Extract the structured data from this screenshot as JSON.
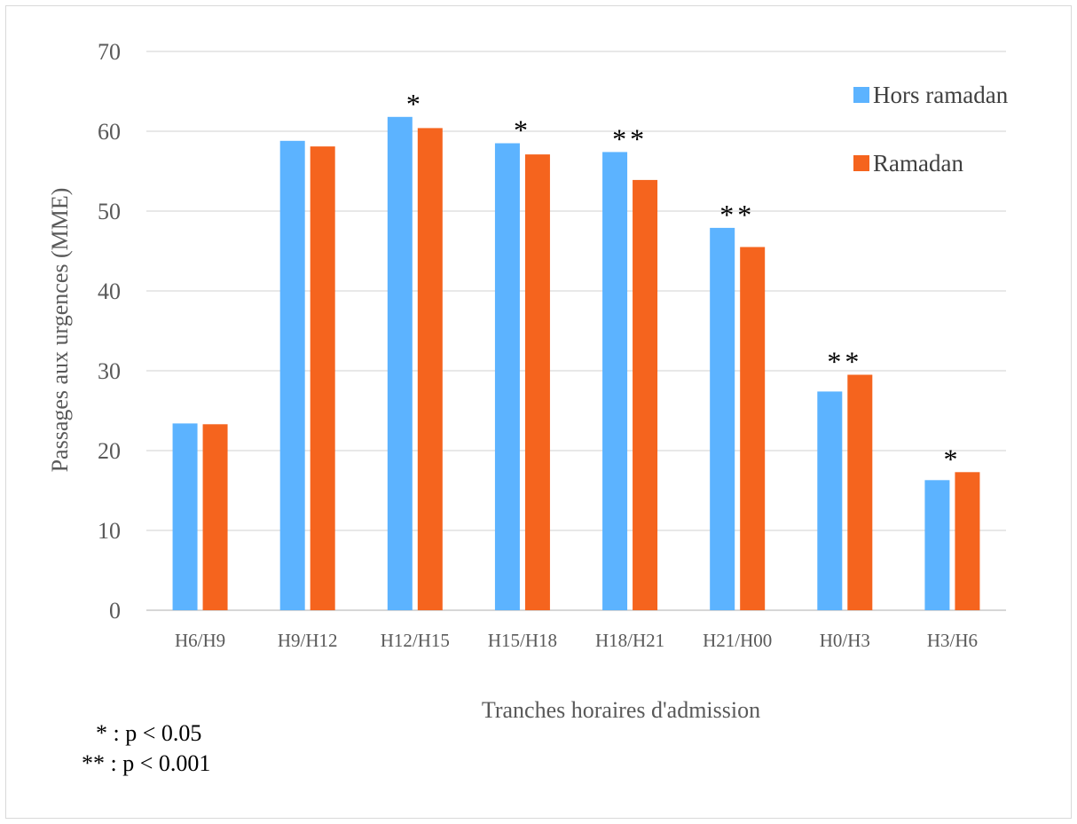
{
  "chart_data": {
    "type": "bar",
    "title": "",
    "xlabel": "Tranches horaires d'admission",
    "ylabel": "Passages aux urgences (MME)",
    "ylim": [
      0,
      70
    ],
    "yticks": [
      0,
      10,
      20,
      30,
      40,
      50,
      60,
      70
    ],
    "grid": true,
    "legend_position": "top-right",
    "categories": [
      "H6/H9",
      "H9/H12",
      "H12/H15",
      "H15/H18",
      "H18/H21",
      "H21/H00",
      "H0/H3",
      "H3/H6"
    ],
    "series": [
      {
        "name": "Hors ramadan",
        "color": "#5CB3FF",
        "values": [
          23.4,
          58.8,
          61.8,
          58.5,
          57.4,
          47.9,
          27.4,
          16.3
        ]
      },
      {
        "name": "Ramadan",
        "color": "#F5641E",
        "values": [
          23.3,
          58.1,
          60.4,
          57.1,
          53.9,
          45.5,
          29.5,
          17.3
        ]
      }
    ],
    "annotations": [
      "",
      "",
      "*",
      "*",
      "**",
      "**",
      "**",
      "*"
    ]
  },
  "footnotes": {
    "line1": "* : p < 0.05",
    "line2": "** : p < 0.001"
  }
}
